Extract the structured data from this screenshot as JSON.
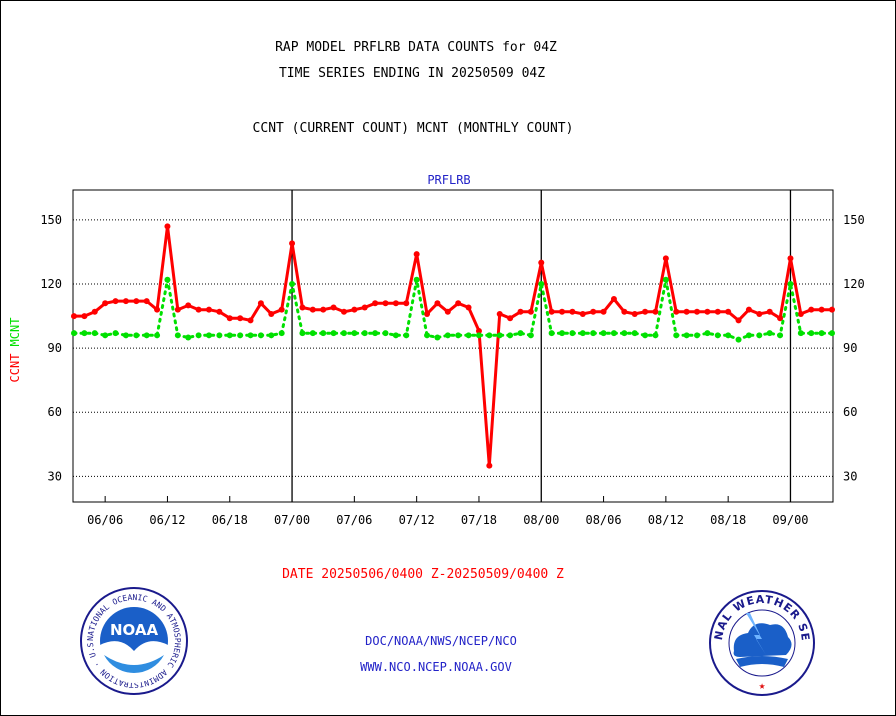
{
  "header": {
    "line1": "RAP MODEL PRFLRB DATA COUNTS for 04Z",
    "line2": "TIME SERIES ENDING IN 20250509 04Z",
    "line3": "CCNT (CURRENT COUNT) MCNT (MONTHLY COUNT)"
  },
  "footer": {
    "date_range": "DATE 20250506/0400 Z-20250509/0400 Z",
    "org": "DOC/NOAA/NWS/NCEP/NCO",
    "url": "WWW.NCO.NCEP.NOAA.GOV"
  },
  "logos": {
    "noaa": {
      "icon": "noaa-seal-icon",
      "center_text": "NOAA",
      "ring_text": "NATIONAL OCEANIC AND ATMOSPHERIC ADMINISTRATION · U.S. DEPARTMENT OF COMMERCE"
    },
    "nws": {
      "icon": "nws-seal-icon",
      "ring_text": "NATIONAL WEATHER SERVICE"
    }
  },
  "chart_data": {
    "type": "line",
    "title": "PRFLRB",
    "ylabel_parts": [
      "CCNT",
      "MCNT"
    ],
    "ylim": [
      18,
      164
    ],
    "yticks": [
      30,
      60,
      90,
      120,
      150
    ],
    "xticks": [
      "06/06",
      "06/12",
      "06/18",
      "07/00",
      "07/06",
      "07/12",
      "07/18",
      "08/00",
      "08/06",
      "08/12",
      "08/18",
      "09/00"
    ],
    "grid": true,
    "colors": {
      "ccnt": "#ff0000",
      "mcnt": "#00e000",
      "title": "#2323c8",
      "axis": "#000000"
    },
    "series": [
      {
        "name": "CCNT",
        "style": "solid",
        "values": [
          105,
          105,
          107,
          111,
          112,
          112,
          112,
          112,
          108,
          147,
          108,
          110,
          108,
          108,
          107,
          104,
          104,
          103,
          111,
          106,
          108,
          139,
          109,
          108,
          108,
          109,
          107,
          108,
          109,
          111,
          111,
          111,
          111,
          134,
          106,
          111,
          107,
          111,
          109,
          98,
          35,
          106,
          104,
          107,
          107,
          130,
          107,
          107,
          107,
          106,
          107,
          107,
          113,
          107,
          106,
          107,
          107,
          132,
          107,
          107,
          107,
          107,
          107,
          107,
          103,
          108,
          106,
          107,
          104,
          132,
          106,
          108,
          108,
          108
        ]
      },
      {
        "name": "MCNT",
        "style": "dotted",
        "values": [
          97,
          97,
          97,
          96,
          97,
          96,
          96,
          96,
          96,
          122,
          96,
          95,
          96,
          96,
          96,
          96,
          96,
          96,
          96,
          96,
          97,
          120,
          97,
          97,
          97,
          97,
          97,
          97,
          97,
          97,
          97,
          96,
          96,
          122,
          96,
          95,
          96,
          96,
          96,
          96,
          96,
          96,
          96,
          97,
          96,
          120,
          97,
          97,
          97,
          97,
          97,
          97,
          97,
          97,
          97,
          96,
          96,
          122,
          96,
          96,
          96,
          97,
          96,
          96,
          94,
          96,
          96,
          97,
          96,
          120,
          97,
          97,
          97,
          97
        ]
      }
    ]
  }
}
